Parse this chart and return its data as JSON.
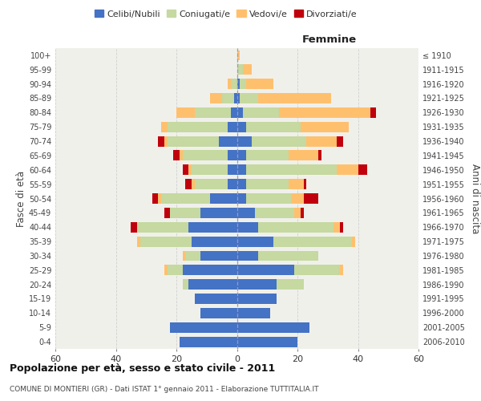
{
  "age_groups": [
    "0-4",
    "5-9",
    "10-14",
    "15-19",
    "20-24",
    "25-29",
    "30-34",
    "35-39",
    "40-44",
    "45-49",
    "50-54",
    "55-59",
    "60-64",
    "65-69",
    "70-74",
    "75-79",
    "80-84",
    "85-89",
    "90-94",
    "95-99",
    "100+"
  ],
  "birth_years": [
    "2006-2010",
    "2001-2005",
    "1996-2000",
    "1991-1995",
    "1986-1990",
    "1981-1985",
    "1976-1980",
    "1971-1975",
    "1966-1970",
    "1961-1965",
    "1956-1960",
    "1951-1955",
    "1946-1950",
    "1941-1945",
    "1936-1940",
    "1931-1935",
    "1926-1930",
    "1921-1925",
    "1916-1920",
    "1911-1915",
    "≤ 1910"
  ],
  "male_celibi": [
    19,
    22,
    12,
    14,
    16,
    18,
    12,
    15,
    16,
    12,
    9,
    3,
    3,
    3,
    6,
    3,
    2,
    1,
    0,
    0,
    0
  ],
  "male_coniugati": [
    0,
    0,
    0,
    0,
    2,
    5,
    5,
    17,
    17,
    10,
    16,
    11,
    12,
    15,
    17,
    20,
    12,
    4,
    2,
    0,
    0
  ],
  "male_vedovi": [
    0,
    0,
    0,
    0,
    0,
    1,
    1,
    1,
    0,
    0,
    1,
    1,
    1,
    1,
    1,
    2,
    6,
    4,
    1,
    0,
    0
  ],
  "male_divorziati": [
    0,
    0,
    0,
    0,
    0,
    0,
    0,
    0,
    2,
    2,
    2,
    2,
    2,
    2,
    2,
    0,
    0,
    0,
    0,
    0,
    0
  ],
  "female_celibi": [
    20,
    24,
    11,
    13,
    13,
    19,
    7,
    12,
    7,
    6,
    3,
    3,
    3,
    3,
    5,
    3,
    2,
    1,
    1,
    0,
    0
  ],
  "female_coniugati": [
    0,
    0,
    0,
    0,
    9,
    15,
    20,
    26,
    25,
    13,
    15,
    14,
    30,
    14,
    18,
    18,
    12,
    6,
    2,
    2,
    0
  ],
  "female_vedovi": [
    0,
    0,
    0,
    0,
    0,
    1,
    0,
    1,
    2,
    2,
    4,
    5,
    7,
    10,
    10,
    16,
    30,
    24,
    9,
    3,
    1
  ],
  "female_divorziati": [
    0,
    0,
    0,
    0,
    0,
    0,
    0,
    0,
    1,
    1,
    5,
    1,
    3,
    1,
    2,
    0,
    2,
    0,
    0,
    0,
    0
  ],
  "color_celibi": "#4472c4",
  "color_coniugati": "#c5d9a0",
  "color_vedovi": "#ffc06e",
  "color_divorziati": "#c0000c",
  "title_main": "Popolazione per età, sesso e stato civile - 2011",
  "title_sub": "COMUNE DI MONTIERI (GR) - Dati ISTAT 1° gennaio 2011 - Elaborazione TUTTITALIA.IT",
  "xlim": 60,
  "plot_bg": "#f0f0eb",
  "fig_bg": "#ffffff",
  "grid_color": "#cccccc"
}
